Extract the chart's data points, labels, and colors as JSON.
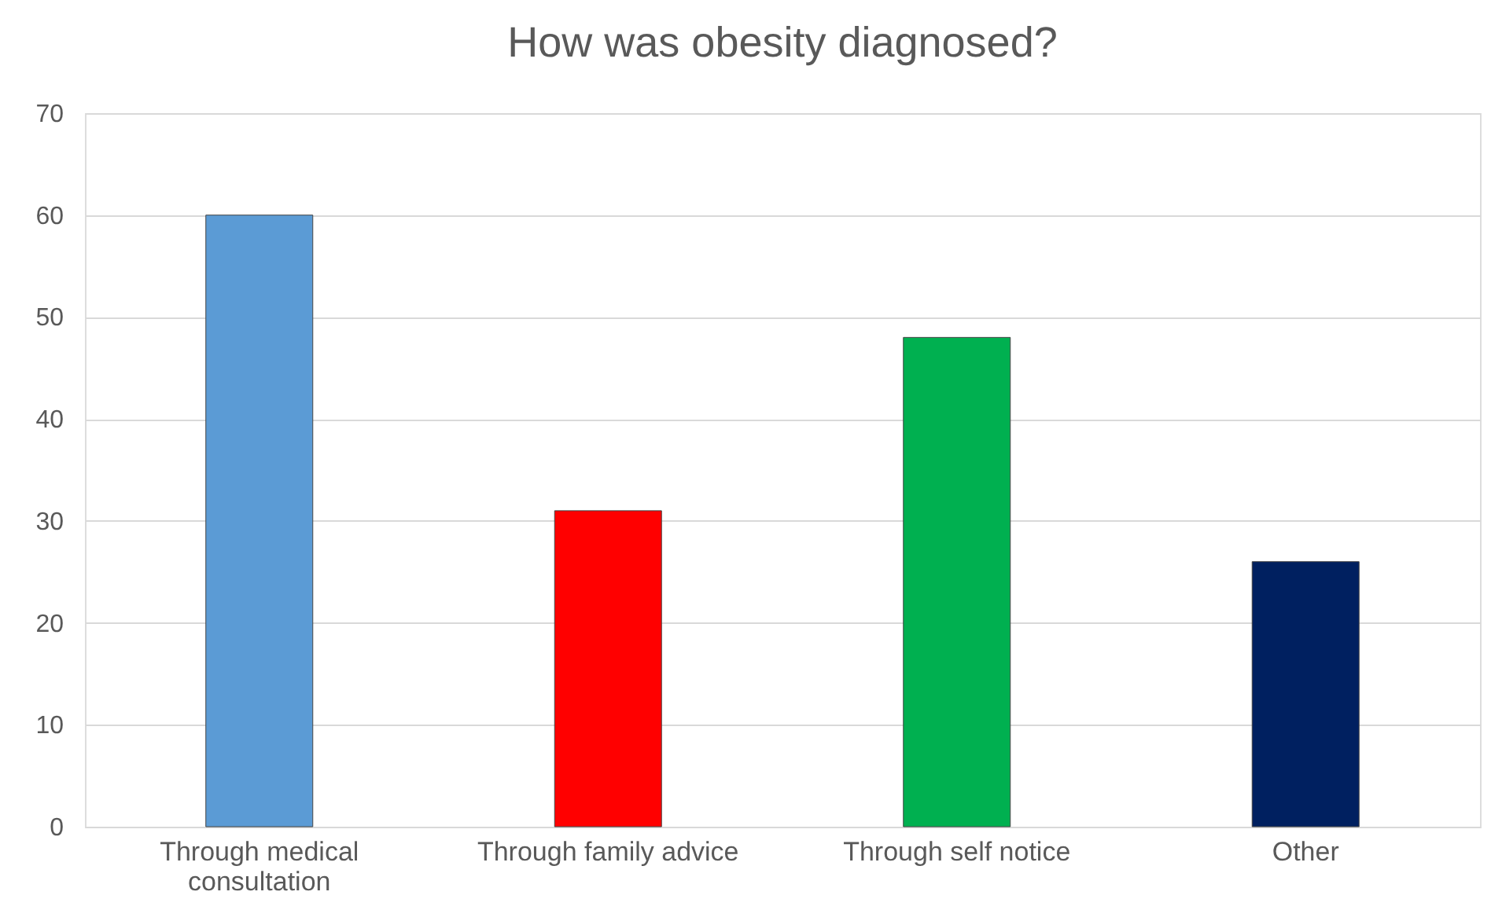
{
  "chart_data": {
    "type": "bar",
    "title": "How was obesity diagnosed?",
    "categories": [
      "Through medical consultation",
      "Through family advice",
      "Through self notice",
      "Other"
    ],
    "values": [
      60,
      31,
      48,
      26
    ],
    "colors": [
      "#5b9bd5",
      "#ff0000",
      "#00b050",
      "#002060"
    ],
    "ylim": [
      0,
      70
    ],
    "yticks": [
      0,
      10,
      20,
      30,
      40,
      50,
      60,
      70
    ],
    "grid": "y"
  }
}
